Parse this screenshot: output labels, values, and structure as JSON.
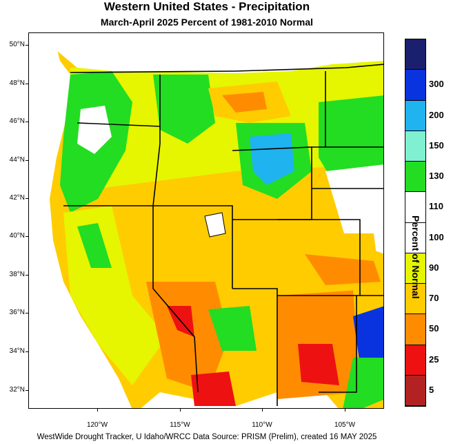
{
  "title": "Western United States - Precipitation",
  "subtitle": "March-April 2025  Percent of 1981-2010 Normal",
  "footer": "WestWide Drought Tracker, U Idaho/WRCC Data Source: PRISM (Prelim), created 16 MAY 2025",
  "legend": {
    "title": "Percent of Normal",
    "bins": [
      {
        "label": "",
        "color": "#1a1f6e"
      },
      {
        "label": "300",
        "color": "#0a33e0"
      },
      {
        "label": "200",
        "color": "#1fb3f0"
      },
      {
        "label": "150",
        "color": "#7ff0d0"
      },
      {
        "label": "130",
        "color": "#22dd22"
      },
      {
        "label": "110",
        "color": "#ffffff"
      },
      {
        "label": "100",
        "color": "#ffffff"
      },
      {
        "label": "90",
        "color": "#e6f500"
      },
      {
        "label": "70",
        "color": "#ffcc00"
      },
      {
        "label": "50",
        "color": "#ff8c00"
      },
      {
        "label": "25",
        "color": "#ee1111"
      },
      {
        "label": "5",
        "color": "#b22222"
      }
    ]
  },
  "latitude_labels": [
    "50°N",
    "48°N",
    "46°N",
    "44°N",
    "42°N",
    "40°N",
    "38°N",
    "36°N",
    "34°N",
    "32°N"
  ],
  "longitude_labels": [
    "120°W",
    "115°W",
    "110°W",
    "105°W"
  ],
  "map_colors": {
    "ocean": "#ffffff",
    "dry": "#ff8c00",
    "very_dry": "#ee1111",
    "below": "#ffcc00",
    "slightly_below": "#e6f500",
    "wet": "#22dd22",
    "very_wet": "#1fb3f0",
    "extreme": "#0a33e0",
    "normal": "#ffffff"
  }
}
